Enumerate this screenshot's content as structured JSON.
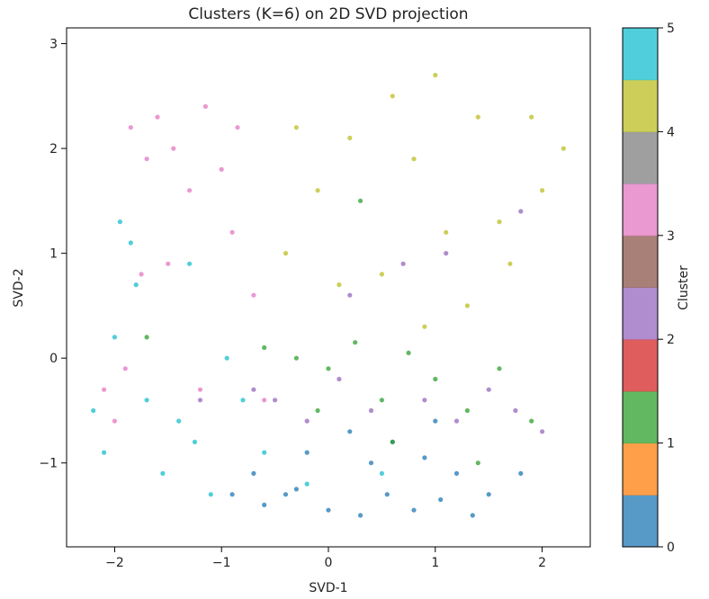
{
  "chart_data": {
    "type": "scatter",
    "title": "Clusters (K=6) on 2D SVD projection",
    "xlabel": "SVD-1",
    "ylabel": "SVD-2",
    "xlim": [
      -2.45,
      2.45
    ],
    "ylim": [
      -1.8,
      3.15
    ],
    "xticks": [
      -2,
      -1,
      0,
      1,
      2
    ],
    "yticks": [
      -1,
      0,
      1,
      2,
      3
    ],
    "grid": false,
    "colorbar": {
      "label": "Cluster",
      "range": [
        0,
        5
      ],
      "ticks": [
        0,
        1,
        2,
        3,
        4,
        5
      ],
      "colors": [
        "#1f77b4",
        "#ff7f0e",
        "#2ca02c",
        "#d62728",
        "#9467bd",
        "#8c564b",
        "#e377c2",
        "#7f7f7f",
        "#bcbd22",
        "#17becf"
      ]
    },
    "series": [
      {
        "cluster": 0,
        "color": "#1f77b4",
        "x": [
          -0.9,
          -0.6,
          -0.3,
          0.0,
          0.3,
          0.55,
          0.8,
          1.05,
          1.35,
          1.5,
          -0.2,
          0.4,
          0.9,
          1.2,
          -0.7,
          0.2,
          0.6,
          1.0,
          1.8,
          -0.4
        ],
        "y": [
          -1.3,
          -1.4,
          -1.25,
          -1.45,
          -1.5,
          -1.3,
          -1.45,
          -1.35,
          -1.5,
          -1.3,
          -0.9,
          -1.0,
          -0.95,
          -1.1,
          -1.1,
          -0.7,
          -0.8,
          -0.6,
          -1.1,
          -1.3
        ]
      },
      {
        "cluster": 1,
        "color": "#2ca02c",
        "x": [
          -0.6,
          -0.3,
          0.0,
          0.25,
          0.5,
          0.75,
          1.0,
          1.3,
          1.6,
          -1.7,
          -0.1,
          0.6,
          1.4,
          1.9,
          0.3
        ],
        "y": [
          0.1,
          0.0,
          -0.1,
          0.15,
          -0.4,
          0.05,
          -0.2,
          -0.5,
          -0.1,
          0.2,
          -0.5,
          -0.8,
          -1.0,
          -0.6,
          1.5
        ]
      },
      {
        "cluster": 2,
        "color": "#9467bd",
        "x": [
          -0.7,
          -0.5,
          -0.2,
          0.1,
          0.4,
          0.9,
          1.2,
          1.5,
          1.75,
          2.0,
          -1.2,
          0.7,
          1.1,
          1.8,
          0.2
        ],
        "y": [
          -0.3,
          -0.4,
          -0.6,
          -0.2,
          -0.5,
          -0.4,
          -0.6,
          -0.3,
          -0.5,
          -0.7,
          -0.4,
          0.9,
          1.0,
          1.4,
          0.6
        ]
      },
      {
        "cluster": 3,
        "color": "#e377c2",
        "x": [
          -2.1,
          -2.0,
          -1.85,
          -1.7,
          -1.6,
          -1.45,
          -1.3,
          -1.15,
          -1.0,
          -0.85,
          -0.7,
          -1.9,
          -1.5,
          -1.2,
          -0.9,
          -0.6,
          -1.75
        ],
        "y": [
          -0.3,
          -0.6,
          2.2,
          1.9,
          2.3,
          2.0,
          1.6,
          2.4,
          1.8,
          2.2,
          0.6,
          -0.1,
          0.9,
          -0.3,
          1.2,
          -0.4,
          0.8
        ]
      },
      {
        "cluster": 4,
        "color": "#bcbd22",
        "x": [
          -0.4,
          -0.1,
          0.2,
          0.5,
          0.8,
          1.1,
          1.4,
          1.7,
          2.0,
          2.2,
          0.1,
          0.6,
          1.0,
          1.3,
          1.9,
          0.9,
          -0.3,
          1.6
        ],
        "y": [
          1.0,
          1.6,
          2.1,
          0.8,
          1.9,
          1.2,
          2.3,
          0.9,
          1.6,
          2.0,
          0.7,
          2.5,
          2.7,
          0.5,
          2.3,
          0.3,
          2.2,
          1.3
        ]
      },
      {
        "cluster": 5,
        "color": "#17becf",
        "x": [
          -2.2,
          -2.1,
          -2.0,
          -1.85,
          -1.7,
          -1.55,
          -1.4,
          -1.25,
          -1.1,
          -0.95,
          -0.8,
          -0.6,
          -1.95,
          -1.8,
          -1.3,
          -0.2,
          0.5
        ],
        "y": [
          -0.5,
          -0.9,
          0.2,
          1.1,
          -0.4,
          -1.1,
          -0.6,
          -0.8,
          -1.3,
          0.0,
          -0.4,
          -0.9,
          1.3,
          0.7,
          0.9,
          -1.2,
          -1.1
        ]
      }
    ]
  }
}
